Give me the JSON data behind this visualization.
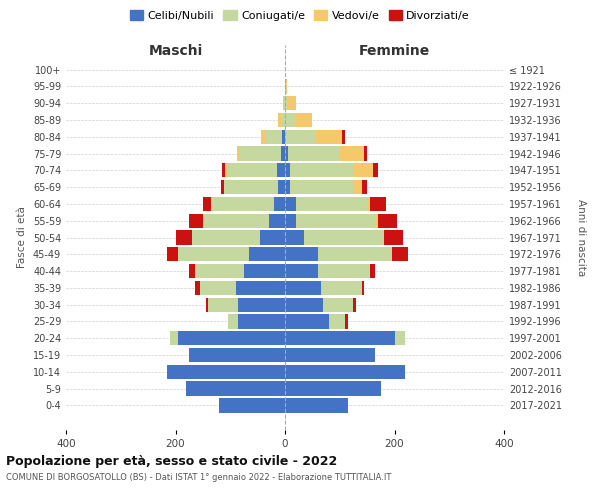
{
  "age_groups": [
    "0-4",
    "5-9",
    "10-14",
    "15-19",
    "20-24",
    "25-29",
    "30-34",
    "35-39",
    "40-44",
    "45-49",
    "50-54",
    "55-59",
    "60-64",
    "65-69",
    "70-74",
    "75-79",
    "80-84",
    "85-89",
    "90-94",
    "95-99",
    "100+"
  ],
  "birth_years": [
    "2017-2021",
    "2012-2016",
    "2007-2011",
    "2002-2006",
    "1997-2001",
    "1992-1996",
    "1987-1991",
    "1982-1986",
    "1977-1981",
    "1972-1976",
    "1967-1971",
    "1962-1966",
    "1957-1961",
    "1952-1956",
    "1947-1951",
    "1942-1946",
    "1937-1941",
    "1932-1936",
    "1927-1931",
    "1922-1926",
    "≤ 1921"
  ],
  "maschi": {
    "celibi": [
      120,
      180,
      215,
      175,
      195,
      85,
      85,
      90,
      75,
      65,
      45,
      30,
      20,
      12,
      15,
      8,
      5,
      0,
      0,
      0,
      0
    ],
    "coniugati": [
      0,
      0,
      0,
      0,
      15,
      20,
      55,
      65,
      90,
      130,
      125,
      120,
      115,
      100,
      90,
      75,
      30,
      8,
      2,
      0,
      0
    ],
    "vedovi": [
      0,
      0,
      0,
      0,
      0,
      0,
      0,
      0,
      0,
      0,
      0,
      0,
      0,
      0,
      5,
      5,
      8,
      5,
      2,
      0,
      0
    ],
    "divorziati": [
      0,
      0,
      0,
      0,
      0,
      0,
      5,
      10,
      10,
      20,
      30,
      25,
      15,
      5,
      5,
      0,
      0,
      0,
      0,
      0,
      0
    ]
  },
  "femmine": {
    "nubili": [
      115,
      175,
      220,
      165,
      200,
      80,
      70,
      65,
      60,
      60,
      35,
      20,
      20,
      10,
      10,
      5,
      0,
      0,
      0,
      0,
      0
    ],
    "coniugate": [
      0,
      0,
      0,
      0,
      20,
      30,
      55,
      75,
      95,
      135,
      145,
      145,
      130,
      115,
      115,
      95,
      55,
      20,
      5,
      2,
      0
    ],
    "vedove": [
      0,
      0,
      0,
      0,
      0,
      0,
      0,
      0,
      0,
      0,
      0,
      5,
      5,
      15,
      35,
      45,
      50,
      30,
      15,
      2,
      0
    ],
    "divorziate": [
      0,
      0,
      0,
      0,
      0,
      5,
      5,
      5,
      10,
      30,
      35,
      35,
      30,
      10,
      10,
      5,
      5,
      0,
      0,
      0,
      0
    ]
  },
  "colors": {
    "celibi_nubili": "#4472C4",
    "coniugati": "#c5d8a0",
    "vedovi": "#f5c96a",
    "divorziati": "#cc1111"
  },
  "xlim": 400,
  "title": "Popolazione per età, sesso e stato civile - 2022",
  "subtitle": "COMUNE DI BORGOSATOLLO (BS) - Dati ISTAT 1° gennaio 2022 - Elaborazione TUTTITALIA.IT",
  "ylabel_left": "Fasce di età",
  "ylabel_right": "Anni di nascita",
  "xlabel_left": "Maschi",
  "xlabel_right": "Femmine",
  "legend_labels": [
    "Celibi/Nubili",
    "Coniugati/e",
    "Vedovi/e",
    "Divorziati/e"
  ],
  "background_color": "#ffffff"
}
